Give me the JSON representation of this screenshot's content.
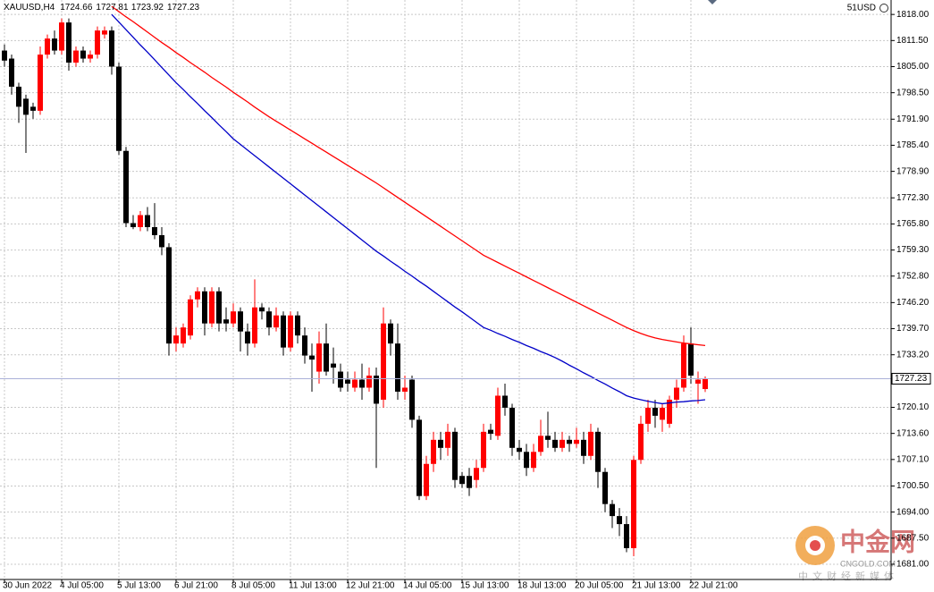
{
  "chart_data": {
    "type": "candlestick",
    "symbol": "XAUUSD,H4",
    "account": "51USD",
    "up_color": "#ff0000",
    "down_color": "#000000",
    "grid": true,
    "categories": [
      "30 Jun 2022",
      null,
      null,
      null,
      null,
      null,
      null,
      null,
      "4 Jul 05:00",
      null,
      null,
      null,
      null,
      null,
      null,
      null,
      "5 Jul 13:00",
      null,
      null,
      null,
      null,
      null,
      null,
      null,
      "6 Jul 21:00",
      null,
      null,
      null,
      null,
      null,
      null,
      null,
      "8 Jul 05:00",
      null,
      null,
      null,
      null,
      null,
      null,
      null,
      "11 Jul 13:00",
      null,
      null,
      null,
      null,
      null,
      null,
      null,
      "12 Jul 21:00",
      null,
      null,
      null,
      null,
      null,
      null,
      null,
      "14 Jul 05:00",
      null,
      null,
      null,
      null,
      null,
      null,
      null,
      "15 Jul 13:00",
      null,
      null,
      null,
      null,
      null,
      null,
      null,
      "18 Jul 13:00",
      null,
      null,
      null,
      null,
      null,
      null,
      null,
      "20 Jul 05:00",
      null,
      null,
      null,
      null,
      null,
      null,
      null,
      "21 Jul 13:00",
      null,
      null,
      null,
      null,
      null,
      null,
      null,
      "22 Jul 21:00",
      null,
      null
    ],
    "ohlc": [
      [
        1809,
        1810.5,
        1805,
        1806.5
      ],
      [
        1807,
        1808,
        1798,
        1800
      ],
      [
        1800,
        1801,
        1791,
        1795
      ],
      [
        1797,
        1798,
        1783.5,
        1793
      ],
      [
        1795,
        1796,
        1792,
        1794
      ],
      [
        1794,
        1810,
        1793,
        1808
      ],
      [
        1808,
        1813,
        1807,
        1812
      ],
      [
        1812,
        1814,
        1808,
        1809
      ],
      [
        1809,
        1817,
        1808,
        1816
      ],
      [
        1816,
        1817,
        1804,
        1806
      ],
      [
        1806,
        1810,
        1805,
        1809
      ],
      [
        1809,
        1810,
        1806,
        1807
      ],
      [
        1807,
        1809,
        1806,
        1808
      ],
      [
        1808,
        1815,
        1807,
        1814
      ],
      [
        1813,
        1815,
        1812,
        1814
      ],
      [
        1814,
        1815,
        1803,
        1805
      ],
      [
        1805,
        1806,
        1783,
        1784
      ],
      [
        1784,
        1785,
        1765,
        1766
      ],
      [
        1766,
        1768,
        1764.5,
        1765
      ],
      [
        1765,
        1769,
        1764,
        1768
      ],
      [
        1768,
        1770,
        1764,
        1765
      ],
      [
        1765,
        1771,
        1762,
        1763
      ],
      [
        1763,
        1765,
        1758,
        1760
      ],
      [
        1760,
        1761,
        1733,
        1736
      ],
      [
        1736,
        1740,
        1734,
        1738
      ],
      [
        1736,
        1741,
        1735,
        1740
      ],
      [
        1738,
        1748,
        1737,
        1747
      ],
      [
        1747,
        1750,
        1745,
        1749
      ],
      [
        1749,
        1750,
        1738,
        1741
      ],
      [
        1741,
        1750,
        1740,
        1749
      ],
      [
        1749,
        1750,
        1739,
        1741
      ],
      [
        1742,
        1745,
        1739,
        1741
      ],
      [
        1741,
        1746,
        1740,
        1744
      ],
      [
        1744,
        1745,
        1734,
        1739
      ],
      [
        1739,
        1741,
        1733,
        1736
      ],
      [
        1736,
        1752,
        1735,
        1745
      ],
      [
        1745,
        1746,
        1742,
        1744
      ],
      [
        1744,
        1745,
        1738,
        1740
      ],
      [
        1740,
        1745,
        1739,
        1743
      ],
      [
        1743,
        1744,
        1733,
        1735
      ],
      [
        1735,
        1744,
        1734,
        1743
      ],
      [
        1743,
        1744,
        1736,
        1738
      ],
      [
        1738,
        1740,
        1731,
        1733
      ],
      [
        1733,
        1736,
        1724,
        1732
      ],
      [
        1729,
        1739,
        1726,
        1736
      ],
      [
        1736,
        1741,
        1728,
        1729
      ],
      [
        1731,
        1735,
        1726,
        1730
      ],
      [
        1729,
        1731,
        1724,
        1725
      ],
      [
        1727,
        1729,
        1724,
        1726
      ],
      [
        1725,
        1729,
        1724,
        1727
      ],
      [
        1727,
        1731,
        1722,
        1725
      ],
      [
        1725,
        1730,
        1724,
        1728
      ],
      [
        1728,
        1730,
        1705,
        1721
      ],
      [
        1722,
        1745,
        1720,
        1741
      ],
      [
        1741,
        1742,
        1733,
        1736
      ],
      [
        1736,
        1741,
        1722,
        1724
      ],
      [
        1724,
        1728,
        1722,
        1725
      ],
      [
        1727,
        1728,
        1715,
        1717
      ],
      [
        1717,
        1718,
        1697,
        1698
      ],
      [
        1698,
        1708,
        1697,
        1706
      ],
      [
        1706,
        1714,
        1704,
        1712
      ],
      [
        1712,
        1714,
        1707,
        1710
      ],
      [
        1710,
        1716,
        1708,
        1714
      ],
      [
        1714,
        1715,
        1700,
        1702
      ],
      [
        1703,
        1704,
        1700,
        1701
      ],
      [
        1703,
        1705,
        1698,
        1700
      ],
      [
        1702,
        1707,
        1700,
        1705
      ],
      [
        1705,
        1716,
        1704,
        1714
      ],
      [
        1714.5,
        1716,
        1712,
        1713.5
      ],
      [
        1713,
        1725,
        1712,
        1723
      ],
      [
        1723,
        1726,
        1718,
        1720
      ],
      [
        1720,
        1721,
        1708,
        1710
      ],
      [
        1710,
        1712,
        1707,
        1709
      ],
      [
        1709,
        1711,
        1703,
        1705
      ],
      [
        1705,
        1711,
        1704,
        1709
      ],
      [
        1709,
        1717,
        1708,
        1713
      ],
      [
        1713,
        1719,
        1710,
        1712
      ],
      [
        1712,
        1714,
        1709,
        1710
      ],
      [
        1710,
        1714,
        1709,
        1712
      ],
      [
        1712,
        1713,
        1709,
        1711
      ],
      [
        1711,
        1715,
        1710,
        1712
      ],
      [
        1712,
        1714,
        1706,
        1708
      ],
      [
        1708,
        1716,
        1707,
        1714
      ],
      [
        1714,
        1715,
        1700,
        1704
      ],
      [
        1704,
        1705,
        1694,
        1696
      ],
      [
        1696,
        1697,
        1690,
        1693
      ],
      [
        1693,
        1695,
        1688,
        1691
      ],
      [
        1691,
        1693,
        1684,
        1685
      ],
      [
        1685,
        1708,
        1683,
        1707
      ],
      [
        1707,
        1718,
        1706,
        1716
      ],
      [
        1716,
        1722,
        1714,
        1720
      ],
      [
        1720,
        1722,
        1715,
        1718
      ],
      [
        1717,
        1721,
        1714,
        1720
      ],
      [
        1716,
        1723,
        1715,
        1722
      ],
      [
        1722,
        1727,
        1720,
        1725
      ],
      [
        1725,
        1738,
        1724,
        1736
      ],
      [
        1736,
        1740,
        1726,
        1728
      ],
      [
        1726,
        1729,
        1721,
        1727
      ],
      [
        1724.66,
        1727.81,
        1723.92,
        1727.23
      ]
    ],
    "series": [
      {
        "color": "#ff0000",
        "values": [
          null,
          null,
          null,
          null,
          null,
          null,
          null,
          null,
          null,
          null,
          null,
          null,
          null,
          null,
          null,
          1820,
          1818.7,
          1817.4,
          1816.2,
          1814.9,
          1813.6,
          1812.3,
          1811,
          1809.8,
          1808.5,
          1807.3,
          1806,
          1804.8,
          1803.6,
          1802.3,
          1801.1,
          1799.9,
          1798.6,
          1797.4,
          1796.2,
          1794.9,
          1793.7,
          1792.5,
          1791.4,
          1790.3,
          1789.2,
          1788.1,
          1787,
          1785.9,
          1784.8,
          1783.7,
          1782.6,
          1781.5,
          1780.4,
          1779.3,
          1778.2,
          1777.1,
          1776,
          1774.8,
          1773.6,
          1772.4,
          1771.2,
          1770,
          1768.8,
          1767.6,
          1766.4,
          1765.2,
          1764,
          1762.8,
          1761.6,
          1760.4,
          1759.2,
          1758,
          1757.1,
          1756.2,
          1755.3,
          1754.4,
          1753.5,
          1752.6,
          1751.7,
          1750.8,
          1749.9,
          1749,
          1748.1,
          1747.2,
          1746.3,
          1745.4,
          1744.5,
          1743.6,
          1742.7,
          1741.8,
          1740.9,
          1740,
          1739.2,
          1738.5,
          1737.9,
          1737.4,
          1737,
          1736.7,
          1736.4,
          1736.1,
          1735.9,
          1735.7,
          1735.5
        ]
      },
      {
        "color": "#0000c8",
        "values": [
          null,
          null,
          null,
          null,
          null,
          null,
          null,
          null,
          null,
          null,
          null,
          null,
          null,
          null,
          null,
          1818,
          1816.1,
          1814.2,
          1812.3,
          1810.4,
          1808.6,
          1806.7,
          1804.8,
          1802.9,
          1801,
          1799.3,
          1797.5,
          1795.8,
          1794,
          1792.3,
          1790.5,
          1788.8,
          1787,
          1785.6,
          1784.2,
          1782.8,
          1781.4,
          1780,
          1778.6,
          1777.2,
          1775.8,
          1774.4,
          1773,
          1771.6,
          1770.2,
          1768.8,
          1767.4,
          1766,
          1764.6,
          1763.2,
          1761.8,
          1760.4,
          1759,
          1757.8,
          1756.5,
          1755.3,
          1754,
          1752.8,
          1751.5,
          1750.3,
          1749,
          1747.7,
          1746.4,
          1745.1,
          1743.9,
          1742.6,
          1741.3,
          1740,
          1739.3,
          1738.5,
          1737.8,
          1737,
          1736.3,
          1735.5,
          1734.8,
          1734,
          1733.3,
          1732.5,
          1731.6,
          1730.6,
          1729.7,
          1728.7,
          1727.8,
          1726.8,
          1725.9,
          1724.9,
          1724,
          1723,
          1722.4,
          1722,
          1721.6,
          1721.3,
          1721,
          1721.2,
          1721.4,
          1721.5,
          1721.7,
          1721.8,
          1722
        ]
      }
    ],
    "ylim": [
      1677.2,
      1821.6
    ],
    "yticks": [
      {
        "value": 1818,
        "label": "1818.00"
      },
      {
        "value": 1811.5,
        "label": "1811.50"
      },
      {
        "value": 1805,
        "label": "1805.00"
      },
      {
        "value": 1798.5,
        "label": "1798.50"
      },
      {
        "value": 1791.9,
        "label": "1791.90"
      },
      {
        "value": 1785.4,
        "label": "1785.40"
      },
      {
        "value": 1778.9,
        "label": "1778.90"
      },
      {
        "value": 1772.3,
        "label": "1772.30"
      },
      {
        "value": 1765.8,
        "label": "1765.80"
      },
      {
        "value": 1759.3,
        "label": "1759.30"
      },
      {
        "value": 1752.8,
        "label": "1752.80"
      },
      {
        "value": 1746.2,
        "label": "1746.20"
      },
      {
        "value": 1739.7,
        "label": "1739.70"
      },
      {
        "value": 1733.2,
        "label": "1733.20"
      },
      {
        "value": 1720.1,
        "label": "1720.10"
      },
      {
        "value": 1713.6,
        "label": "1713.60"
      },
      {
        "value": 1707.1,
        "label": "1707.10"
      },
      {
        "value": 1700.5,
        "label": "1700.50"
      },
      {
        "value": 1694,
        "label": "1694.00"
      },
      {
        "value": 1687.5,
        "label": "1687.50"
      },
      {
        "value": 1681,
        "label": "1681.00"
      }
    ]
  },
  "watermark": {
    "brand": "中金网",
    "site": "CNGOLD.COM",
    "slogan": "中文财经新媒体"
  }
}
